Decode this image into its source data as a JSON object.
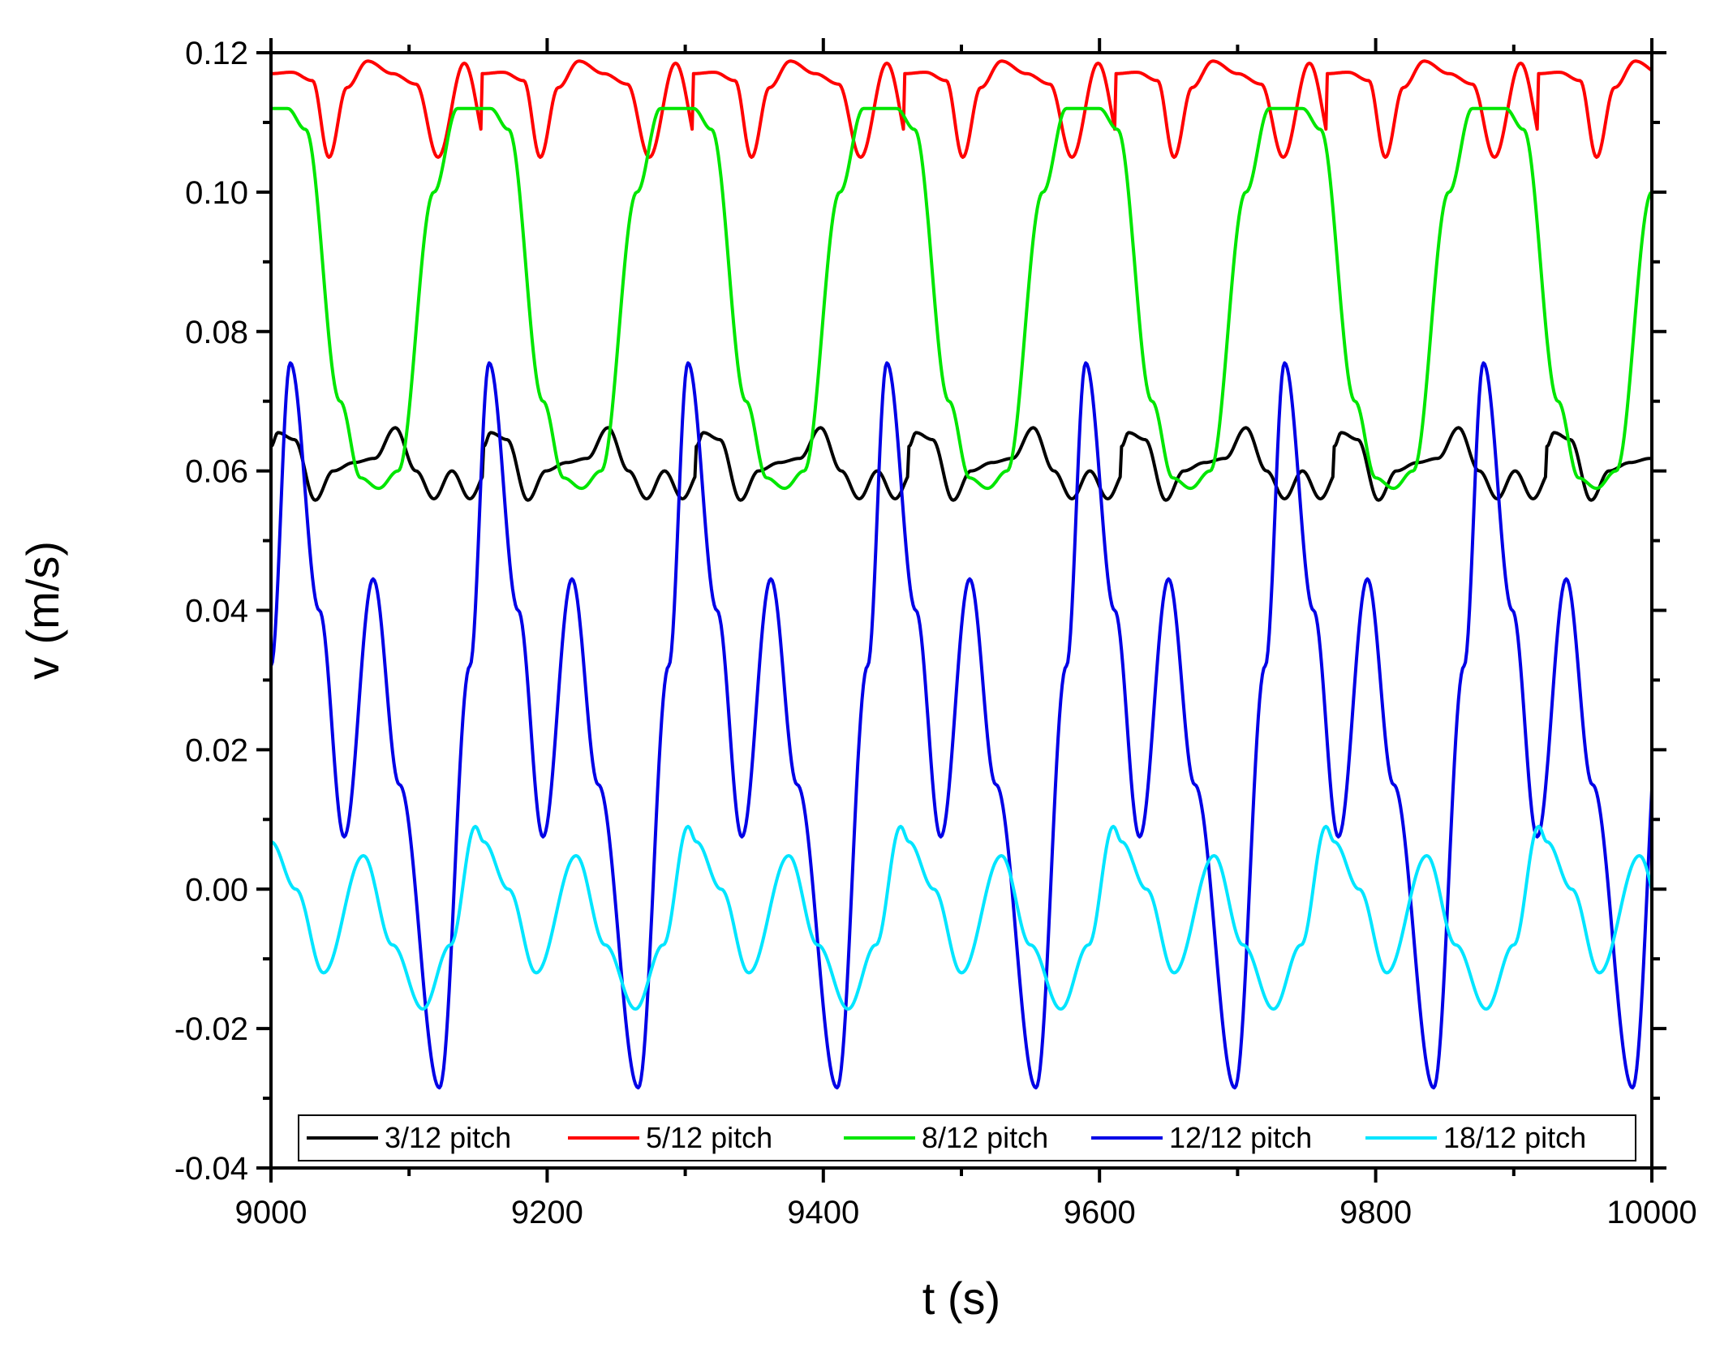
{
  "chart_data": {
    "type": "line",
    "title": "",
    "xlabel": "t (s)",
    "ylabel": "v (m/s)",
    "xlim": [
      9000,
      10000
    ],
    "ylim": [
      -0.04,
      0.12
    ],
    "x_ticks": [
      9000,
      9200,
      9400,
      9600,
      9800,
      10000
    ],
    "x_tick_labels": [
      "9000",
      "9200",
      "9400",
      "9600",
      "9800",
      "10000"
    ],
    "y_ticks": [
      -0.04,
      -0.02,
      0.0,
      0.02,
      0.04,
      0.06,
      0.08,
      0.1,
      0.12
    ],
    "y_tick_labels": [
      "-0.04",
      "-0.02",
      "0.00",
      "0.02",
      "0.04",
      "0.06",
      "0.08",
      "0.10",
      "0.12"
    ],
    "grid": false,
    "legend_position": "bottom-inside",
    "series": [
      {
        "name": "3/12 pitch",
        "color": "#000000",
        "period": 154,
        "x": [
          9000,
          9005,
          9017,
          9032,
          9045,
          9060,
          9075,
          9090,
          9105,
          9118
        ],
        "values": [
          0.0635,
          0.0655,
          0.0645,
          0.0558,
          0.06,
          0.0612,
          0.0618,
          0.0662,
          0.06,
          0.056
        ]
      },
      {
        "name": "5/12 pitch",
        "color": "#ff0000",
        "period": 153,
        "x": [
          9000,
          9015,
          9030,
          9042,
          9055,
          9070,
          9088,
          9105,
          9121,
          9140
        ],
        "values": [
          0.117,
          0.1172,
          0.116,
          0.105,
          0.115,
          0.1188,
          0.117,
          0.1155,
          0.105,
          0.1185
        ]
      },
      {
        "name": "8/12 pitch",
        "color": "#00e600",
        "period": 147,
        "x": [
          9000,
          9012,
          9025,
          9050,
          9065,
          9078,
          9092,
          9118,
          9135,
          9147
        ],
        "values": [
          0.112,
          0.112,
          0.109,
          0.07,
          0.059,
          0.0575,
          0.06,
          0.1,
          0.112,
          0.112
        ]
      },
      {
        "name": "12/12 pitch",
        "color": "#0000e6",
        "period": 144,
        "x": [
          9000,
          9014,
          9035,
          9053,
          9074,
          9093,
          9122,
          9144
        ],
        "values": [
          0.032,
          0.0755,
          0.04,
          0.0075,
          0.0445,
          0.015,
          -0.0285,
          0.032
        ]
      },
      {
        "name": "18/12 pitch",
        "color": "#00e5ff",
        "period": 154,
        "x": [
          9000,
          9018,
          9038,
          9067,
          9088,
          9110,
          9130,
          9148,
          9154
        ],
        "values": [
          0.0068,
          0.0,
          -0.012,
          0.0048,
          -0.008,
          -0.0172,
          -0.008,
          0.009,
          0.0068
        ]
      }
    ]
  }
}
